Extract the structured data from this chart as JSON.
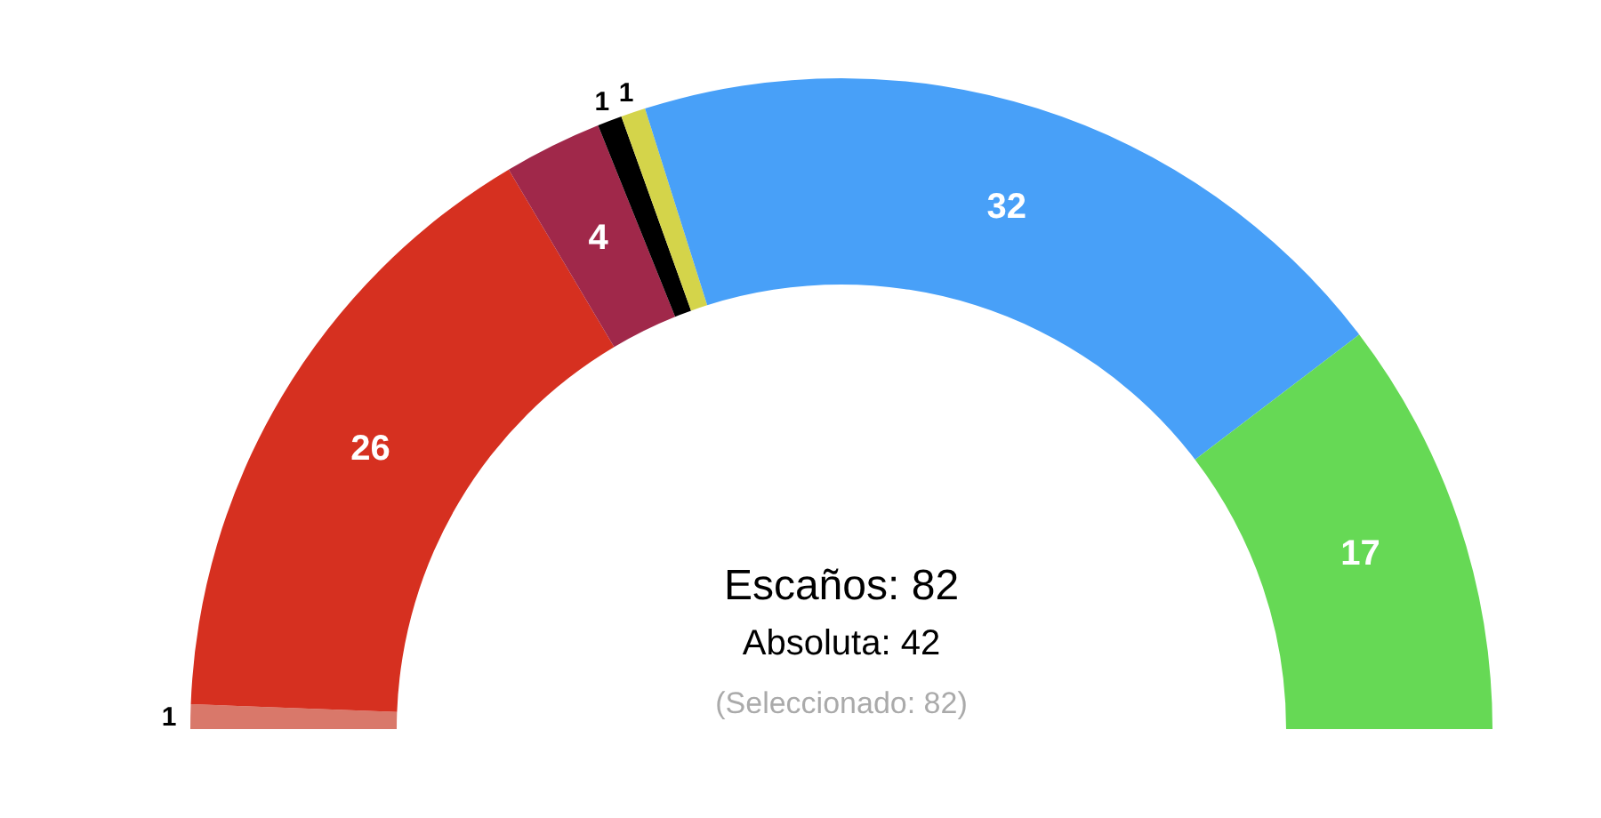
{
  "chart_data": {
    "type": "donut",
    "categories": [
      null,
      null,
      null,
      null,
      null,
      null,
      null
    ],
    "values": [
      1,
      26,
      4,
      1,
      1,
      32,
      17
    ],
    "colors": [
      "#d9786a",
      "#d63020",
      "#a0284a",
      "#000000",
      "#d4d44a",
      "#48a0f8",
      "#66d955"
    ],
    "data_labels": true,
    "annotations": [
      "Escaños: 82",
      "Absoluta: 42",
      "(Seleccionado: 82)"
    ]
  }
}
